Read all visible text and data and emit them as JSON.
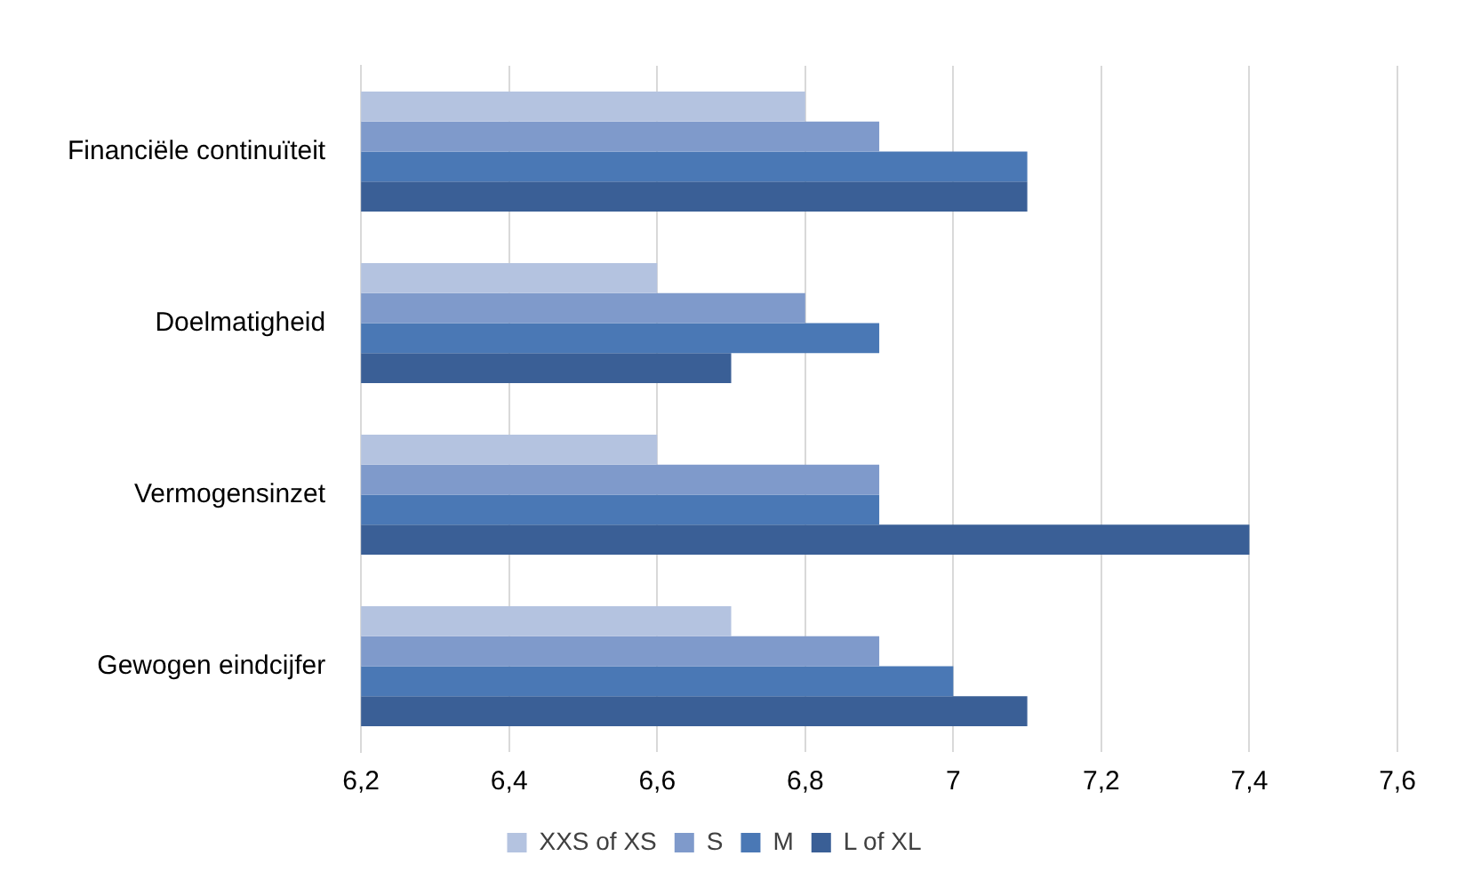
{
  "chart_data": {
    "type": "bar",
    "orientation": "horizontal",
    "categories": [
      "Financiële continuïteit",
      "Doelmatigheid",
      "Vermogensinzet",
      "Gewogen eindcijfer"
    ],
    "series": [
      {
        "name": "XXS of XS",
        "color": "#b4c3e0",
        "values": [
          6.8,
          6.6,
          6.6,
          6.7
        ]
      },
      {
        "name": "S",
        "color": "#7f9acb",
        "values": [
          6.9,
          6.8,
          6.9,
          6.9
        ]
      },
      {
        "name": "M",
        "color": "#4a78b5",
        "values": [
          7.1,
          6.9,
          6.9,
          7.0
        ]
      },
      {
        "name": "L of XL",
        "color": "#3a5f96",
        "values": [
          7.1,
          6.7,
          7.4,
          7.1
        ]
      }
    ],
    "xlim": [
      6.2,
      7.6
    ],
    "xticks": [
      {
        "value": 6.2,
        "label": "6,2"
      },
      {
        "value": 6.4,
        "label": "6,4"
      },
      {
        "value": 6.6,
        "label": "6,6"
      },
      {
        "value": 6.8,
        "label": "6,8"
      },
      7,
      {
        "value": 7.2,
        "label": "7,2"
      },
      {
        "value": 7.4,
        "label": "7,4"
      },
      {
        "value": 7.6,
        "label": "7,6"
      }
    ],
    "grid": "x",
    "legend": "bottom"
  }
}
